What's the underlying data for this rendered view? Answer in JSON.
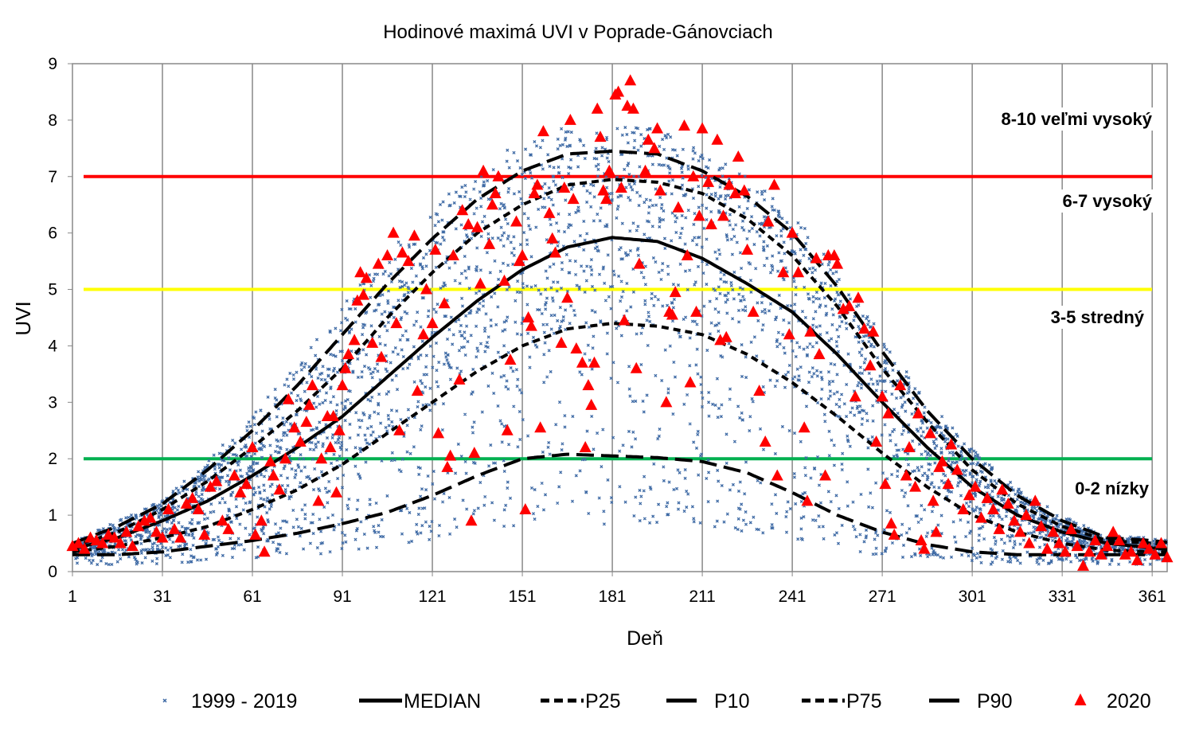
{
  "chart_data": {
    "type": "scatter",
    "title": "Hodinové maximá UVI v Poprade-Gánovciach",
    "xlabel": "Deň",
    "ylabel": "UVI",
    "xlim": [
      1,
      366
    ],
    "ylim": [
      0,
      9
    ],
    "x_ticks": [
      "1",
      "31",
      "61",
      "91",
      "121",
      "151",
      "181",
      "211",
      "241",
      "271",
      "301",
      "331",
      "361"
    ],
    "y_ticks": [
      "0",
      "1",
      "2",
      "3",
      "4",
      "5",
      "6",
      "7",
      "8",
      "9"
    ],
    "grid": "vertical",
    "legend_position": "bottom",
    "thresholds": [
      {
        "value": 7,
        "color": "#ff0000"
      },
      {
        "value": 5,
        "color": "#ffff00"
      },
      {
        "value": 2,
        "color": "#00b050"
      }
    ],
    "band_labels": [
      "8-10 veľmi vysoký",
      "6-7 vysoký",
      "3-5 stredný",
      "0-2 nízky"
    ],
    "curve_days": [
      1,
      16,
      31,
      46,
      61,
      76,
      91,
      106,
      121,
      136,
      151,
      166,
      181,
      196,
      211,
      226,
      241,
      256,
      271,
      286,
      301,
      316,
      331,
      346,
      361,
      366
    ],
    "series": [
      {
        "name": "1999 - 2019",
        "kind": "scatter",
        "color": "#3e6aa5"
      },
      {
        "name": "MEDIAN",
        "kind": "line",
        "style": "solid",
        "color": "#000000",
        "values": [
          0.4,
          0.6,
          0.9,
          1.25,
          1.7,
          2.2,
          2.75,
          3.45,
          4.15,
          4.8,
          5.35,
          5.75,
          5.92,
          5.85,
          5.55,
          5.1,
          4.6,
          3.85,
          3.0,
          2.2,
          1.5,
          1.0,
          0.7,
          0.5,
          0.42,
          0.4
        ]
      },
      {
        "name": "P25",
        "kind": "line",
        "style": "short-dash",
        "color": "#000000",
        "values": [
          0.35,
          0.45,
          0.6,
          0.8,
          1.1,
          1.45,
          1.9,
          2.45,
          3.0,
          3.55,
          4.0,
          4.3,
          4.4,
          4.35,
          4.2,
          3.85,
          3.35,
          2.75,
          2.1,
          1.5,
          1.0,
          0.7,
          0.5,
          0.38,
          0.35,
          0.35
        ]
      },
      {
        "name": "P10",
        "kind": "line",
        "style": "long-dash",
        "color": "#000000",
        "values": [
          0.3,
          0.3,
          0.35,
          0.45,
          0.55,
          0.68,
          0.85,
          1.05,
          1.35,
          1.7,
          2.0,
          2.08,
          2.05,
          2.02,
          1.95,
          1.75,
          1.4,
          1.0,
          0.7,
          0.48,
          0.35,
          0.3,
          0.3,
          0.3,
          0.3,
          0.3
        ]
      },
      {
        "name": "P75",
        "kind": "line",
        "style": "short-dash",
        "color": "#000000",
        "values": [
          0.45,
          0.7,
          1.1,
          1.6,
          2.2,
          2.85,
          3.6,
          4.5,
          5.3,
          6.0,
          6.5,
          6.85,
          6.95,
          6.9,
          6.7,
          6.25,
          5.6,
          4.7,
          3.6,
          2.65,
          1.8,
          1.2,
          0.8,
          0.55,
          0.5,
          0.48
        ]
      },
      {
        "name": "P90",
        "kind": "line",
        "style": "long-dash",
        "color": "#000000",
        "values": [
          0.5,
          0.8,
          1.2,
          1.8,
          2.5,
          3.3,
          4.2,
          5.1,
          5.9,
          6.6,
          7.1,
          7.4,
          7.45,
          7.4,
          7.1,
          6.65,
          6.0,
          5.05,
          3.9,
          2.85,
          2.0,
          1.35,
          0.9,
          0.6,
          0.55,
          0.52
        ]
      },
      {
        "name": "2020",
        "kind": "scatter",
        "marker": "triangle",
        "color": "#ff0000",
        "points": [
          [
            1,
            0.45
          ],
          [
            3,
            0.5
          ],
          [
            5,
            0.4
          ],
          [
            7,
            0.6
          ],
          [
            9,
            0.55
          ],
          [
            11,
            0.5
          ],
          [
            13,
            0.65
          ],
          [
            15,
            0.6
          ],
          [
            17,
            0.5
          ],
          [
            19,
            0.7
          ],
          [
            21,
            0.45
          ],
          [
            23,
            0.8
          ],
          [
            25,
            0.9
          ],
          [
            27,
            0.95
          ],
          [
            29,
            0.7
          ],
          [
            31,
            0.6
          ],
          [
            33,
            1.1
          ],
          [
            35,
            0.75
          ],
          [
            37,
            0.6
          ],
          [
            39,
            1.2
          ],
          [
            41,
            1.3
          ],
          [
            43,
            1.1
          ],
          [
            45,
            0.65
          ],
          [
            47,
            1.5
          ],
          [
            49,
            1.6
          ],
          [
            51,
            0.9
          ],
          [
            53,
            0.75
          ],
          [
            55,
            1.7
          ],
          [
            57,
            1.4
          ],
          [
            59,
            1.55
          ],
          [
            61,
            2.2
          ],
          [
            62,
            0.65
          ],
          [
            64,
            0.9
          ],
          [
            65,
            0.35
          ],
          [
            67,
            1.95
          ],
          [
            68,
            1.7
          ],
          [
            70,
            1.45
          ],
          [
            72,
            2.0
          ],
          [
            73,
            3.05
          ],
          [
            75,
            2.55
          ],
          [
            77,
            2.3
          ],
          [
            79,
            2.65
          ],
          [
            80,
            2.95
          ],
          [
            81,
            3.3
          ],
          [
            83,
            1.25
          ],
          [
            84,
            2.0
          ],
          [
            86,
            2.75
          ],
          [
            87,
            2.2
          ],
          [
            88,
            2.75
          ],
          [
            89,
            1.4
          ],
          [
            90,
            2.5
          ],
          [
            91,
            3.3
          ],
          [
            92,
            3.6
          ],
          [
            93,
            3.85
          ],
          [
            95,
            4.1
          ],
          [
            96,
            4.8
          ],
          [
            97,
            5.3
          ],
          [
            98,
            4.9
          ],
          [
            99,
            5.2
          ],
          [
            101,
            4.05
          ],
          [
            103,
            5.45
          ],
          [
            104,
            3.8
          ],
          [
            106,
            5.6
          ],
          [
            108,
            6.0
          ],
          [
            109,
            4.4
          ],
          [
            110,
            2.5
          ],
          [
            111,
            5.65
          ],
          [
            113,
            5.5
          ],
          [
            115,
            5.95
          ],
          [
            116,
            3.2
          ],
          [
            118,
            4.2
          ],
          [
            119,
            5.0
          ],
          [
            121,
            4.4
          ],
          [
            122,
            5.7
          ],
          [
            123,
            2.45
          ],
          [
            125,
            4.75
          ],
          [
            126,
            1.85
          ],
          [
            127,
            2.05
          ],
          [
            128,
            5.6
          ],
          [
            130,
            3.4
          ],
          [
            131,
            6.4
          ],
          [
            133,
            6.15
          ],
          [
            134,
            0.9
          ],
          [
            135,
            2.1
          ],
          [
            136,
            6.1
          ],
          [
            137,
            5.1
          ],
          [
            138,
            7.1
          ],
          [
            140,
            5.8
          ],
          [
            141,
            6.5
          ],
          [
            142,
            6.7
          ],
          [
            143,
            7.0
          ],
          [
            145,
            5.15
          ],
          [
            146,
            2.5
          ],
          [
            147,
            3.75
          ],
          [
            149,
            6.2
          ],
          [
            150,
            5.5
          ],
          [
            151,
            5.6
          ],
          [
            152,
            1.1
          ],
          [
            153,
            4.5
          ],
          [
            154,
            4.35
          ],
          [
            155,
            6.7
          ],
          [
            156,
            6.85
          ],
          [
            157,
            2.55
          ],
          [
            158,
            7.8
          ],
          [
            160,
            6.35
          ],
          [
            161,
            5.9
          ],
          [
            162,
            5.65
          ],
          [
            164,
            4.05
          ],
          [
            165,
            6.8
          ],
          [
            166,
            4.85
          ],
          [
            167,
            8.0
          ],
          [
            168,
            6.6
          ],
          [
            169,
            3.95
          ],
          [
            171,
            3.7
          ],
          [
            172,
            2.2
          ],
          [
            173,
            3.3
          ],
          [
            174,
            2.95
          ],
          [
            175,
            3.7
          ],
          [
            176,
            8.2
          ],
          [
            177,
            7.7
          ],
          [
            178,
            6.75
          ],
          [
            179,
            6.6
          ],
          [
            180,
            7.1
          ],
          [
            182,
            8.45
          ],
          [
            183,
            8.5
          ],
          [
            184,
            6.8
          ],
          [
            185,
            4.45
          ],
          [
            186,
            8.25
          ],
          [
            187,
            8.7
          ],
          [
            188,
            8.2
          ],
          [
            189,
            3.6
          ],
          [
            190,
            5.45
          ],
          [
            192,
            7.1
          ],
          [
            193,
            7.65
          ],
          [
            195,
            7.5
          ],
          [
            196,
            7.85
          ],
          [
            197,
            6.75
          ],
          [
            199,
            3.0
          ],
          [
            200,
            4.6
          ],
          [
            201,
            4.55
          ],
          [
            202,
            4.95
          ],
          [
            203,
            6.45
          ],
          [
            205,
            7.9
          ],
          [
            206,
            5.6
          ],
          [
            207,
            3.35
          ],
          [
            208,
            7.0
          ],
          [
            209,
            4.6
          ],
          [
            210,
            6.3
          ],
          [
            211,
            7.85
          ],
          [
            213,
            6.9
          ],
          [
            214,
            6.15
          ],
          [
            216,
            7.65
          ],
          [
            217,
            4.1
          ],
          [
            218,
            6.3
          ],
          [
            219,
            4.15
          ],
          [
            220,
            6.85
          ],
          [
            222,
            6.7
          ],
          [
            223,
            7.35
          ],
          [
            225,
            6.75
          ],
          [
            226,
            5.7
          ],
          [
            228,
            4.6
          ],
          [
            230,
            3.2
          ],
          [
            232,
            2.3
          ],
          [
            233,
            6.2
          ],
          [
            235,
            6.85
          ],
          [
            236,
            1.7
          ],
          [
            238,
            5.3
          ],
          [
            240,
            4.2
          ],
          [
            241,
            6.0
          ],
          [
            243,
            5.3
          ],
          [
            245,
            2.55
          ],
          [
            246,
            1.25
          ],
          [
            247,
            4.25
          ],
          [
            249,
            5.55
          ],
          [
            250,
            3.85
          ],
          [
            252,
            1.7
          ],
          [
            253,
            5.6
          ],
          [
            255,
            5.6
          ],
          [
            256,
            5.45
          ],
          [
            258,
            4.65
          ],
          [
            260,
            4.7
          ],
          [
            262,
            3.1
          ],
          [
            263,
            4.85
          ],
          [
            265,
            4.3
          ],
          [
            267,
            3.65
          ],
          [
            268,
            4.25
          ],
          [
            269,
            2.3
          ],
          [
            271,
            3.1
          ],
          [
            272,
            1.55
          ],
          [
            273,
            2.8
          ],
          [
            274,
            0.85
          ],
          [
            275,
            0.65
          ],
          [
            277,
            3.3
          ],
          [
            279,
            1.7
          ],
          [
            280,
            2.2
          ],
          [
            282,
            1.5
          ],
          [
            283,
            2.8
          ],
          [
            284,
            0.55
          ],
          [
            285,
            0.4
          ],
          [
            287,
            2.45
          ],
          [
            288,
            1.25
          ],
          [
            289,
            0.7
          ],
          [
            290,
            1.85
          ],
          [
            291,
            1.95
          ],
          [
            293,
            1.55
          ],
          [
            294,
            2.25
          ],
          [
            296,
            1.8
          ],
          [
            298,
            1.1
          ],
          [
            300,
            1.35
          ],
          [
            302,
            1.5
          ],
          [
            304,
            0.95
          ],
          [
            306,
            1.3
          ],
          [
            308,
            1.1
          ],
          [
            310,
            0.75
          ],
          [
            311,
            1.45
          ],
          [
            313,
            1.2
          ],
          [
            315,
            0.9
          ],
          [
            317,
            0.7
          ],
          [
            319,
            1.0
          ],
          [
            320,
            0.5
          ],
          [
            322,
            1.25
          ],
          [
            324,
            0.8
          ],
          [
            326,
            0.4
          ],
          [
            328,
            0.7
          ],
          [
            330,
            0.5
          ],
          [
            332,
            0.35
          ],
          [
            334,
            0.75
          ],
          [
            336,
            0.45
          ],
          [
            338,
            0.1
          ],
          [
            340,
            0.35
          ],
          [
            342,
            0.55
          ],
          [
            344,
            0.3
          ],
          [
            346,
            0.45
          ],
          [
            348,
            0.7
          ],
          [
            350,
            0.55
          ],
          [
            352,
            0.3
          ],
          [
            354,
            0.35
          ],
          [
            356,
            0.2
          ],
          [
            358,
            0.5
          ],
          [
            360,
            0.4
          ],
          [
            362,
            0.3
          ],
          [
            364,
            0.5
          ],
          [
            366,
            0.25
          ]
        ]
      }
    ]
  }
}
